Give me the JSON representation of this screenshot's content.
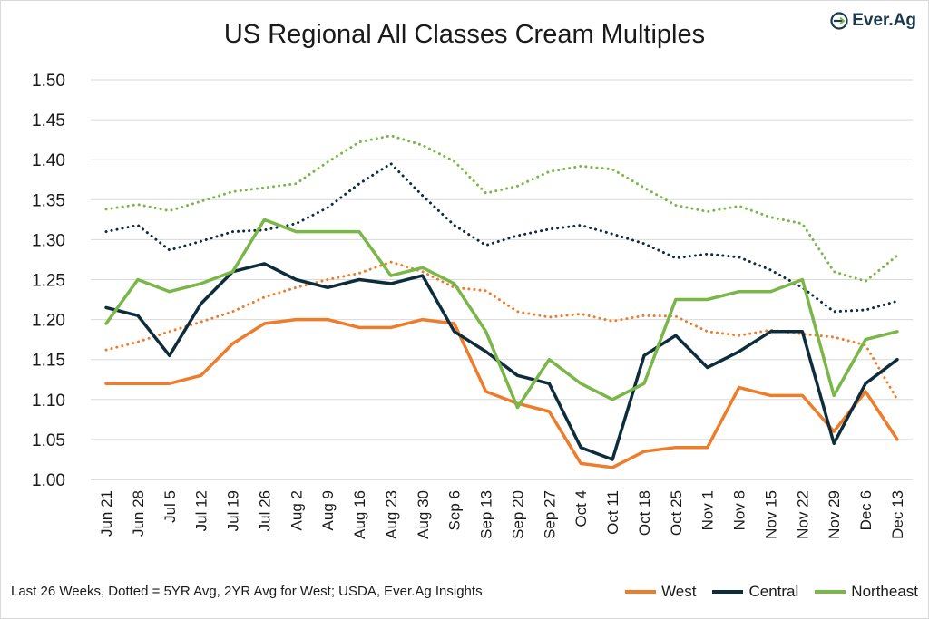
{
  "logo": {
    "text": "Ever.Ag",
    "icon": "ever-ag-logo-icon"
  },
  "chart_data": {
    "type": "line",
    "title": "US Regional All Classes Cream Multiples",
    "xlabel": "",
    "ylabel": "",
    "ylim": [
      1.0,
      1.5
    ],
    "yticks": [
      "1.00",
      "1.05",
      "1.10",
      "1.15",
      "1.20",
      "1.25",
      "1.30",
      "1.35",
      "1.40",
      "1.45",
      "1.50"
    ],
    "grid": true,
    "categories": [
      "Jun 21",
      "Jun 28",
      "Jul 5",
      "Jul 12",
      "Jul 19",
      "Jul 26",
      "Aug 2",
      "Aug 9",
      "Aug 16",
      "Aug 23",
      "Aug 30",
      "Sep 6",
      "Sep 13",
      "Sep 20",
      "Sep 27",
      "Oct 4",
      "Oct 11",
      "Oct 18",
      "Oct 25",
      "Nov 1",
      "Nov 8",
      "Nov 15",
      "Nov 22",
      "Nov 29",
      "Dec 6",
      "Dec 13"
    ],
    "series": [
      {
        "name": "West",
        "color": "#ee7d2b",
        "style": "solid",
        "values": [
          1.12,
          1.12,
          1.12,
          1.13,
          1.17,
          1.195,
          1.2,
          1.2,
          1.19,
          1.19,
          1.2,
          1.195,
          1.11,
          1.095,
          1.085,
          1.02,
          1.015,
          1.035,
          1.04,
          1.04,
          1.115,
          1.105,
          1.105,
          1.06,
          1.11,
          1.05
        ]
      },
      {
        "name": "Central",
        "color": "#0d2d3d",
        "style": "solid",
        "values": [
          1.215,
          1.205,
          1.155,
          1.22,
          1.26,
          1.27,
          1.25,
          1.24,
          1.25,
          1.245,
          1.255,
          1.185,
          1.16,
          1.13,
          1.12,
          1.04,
          1.025,
          1.155,
          1.18,
          1.14,
          1.16,
          1.185,
          1.185,
          1.045,
          1.12,
          1.15
        ]
      },
      {
        "name": "Northeast",
        "color": "#7ab648",
        "style": "solid",
        "values": [
          1.195,
          1.25,
          1.235,
          1.245,
          1.26,
          1.325,
          1.31,
          1.31,
          1.31,
          1.255,
          1.265,
          1.245,
          1.185,
          1.09,
          1.15,
          1.12,
          1.1,
          1.12,
          1.225,
          1.225,
          1.235,
          1.235,
          1.25,
          1.105,
          1.175,
          1.185
        ]
      },
      {
        "name": "West Avg (2YR)",
        "color": "#ee7d2b",
        "style": "dotted",
        "legend": false,
        "values": [
          1.162,
          1.172,
          1.185,
          1.197,
          1.21,
          1.228,
          1.24,
          1.25,
          1.258,
          1.272,
          1.26,
          1.24,
          1.236,
          1.21,
          1.203,
          1.207,
          1.198,
          1.205,
          1.204,
          1.185,
          1.18,
          1.187,
          1.182,
          1.178,
          1.168,
          1.1
        ]
      },
      {
        "name": "Central Avg (5YR)",
        "color": "#0d2d3d",
        "style": "dotted",
        "legend": false,
        "values": [
          1.31,
          1.318,
          1.287,
          1.298,
          1.31,
          1.312,
          1.32,
          1.34,
          1.37,
          1.395,
          1.355,
          1.318,
          1.293,
          1.305,
          1.313,
          1.318,
          1.307,
          1.295,
          1.277,
          1.282,
          1.278,
          1.262,
          1.24,
          1.21,
          1.212,
          1.223
        ]
      },
      {
        "name": "Northeast Avg (5YR)",
        "color": "#7ab648",
        "style": "dotted",
        "legend": false,
        "values": [
          1.338,
          1.344,
          1.336,
          1.348,
          1.36,
          1.365,
          1.37,
          1.397,
          1.422,
          1.43,
          1.418,
          1.398,
          1.358,
          1.367,
          1.385,
          1.392,
          1.388,
          1.365,
          1.343,
          1.335,
          1.342,
          1.328,
          1.32,
          1.26,
          1.248,
          1.28
        ]
      }
    ],
    "legend": {
      "placement": "bottom-right",
      "entries": [
        "West",
        "Central",
        "Northeast"
      ]
    },
    "annotation": "Last 26 Weeks, Dotted = 5YR Avg, 2YR Avg for West; USDA, Ever.Ag Insights"
  }
}
